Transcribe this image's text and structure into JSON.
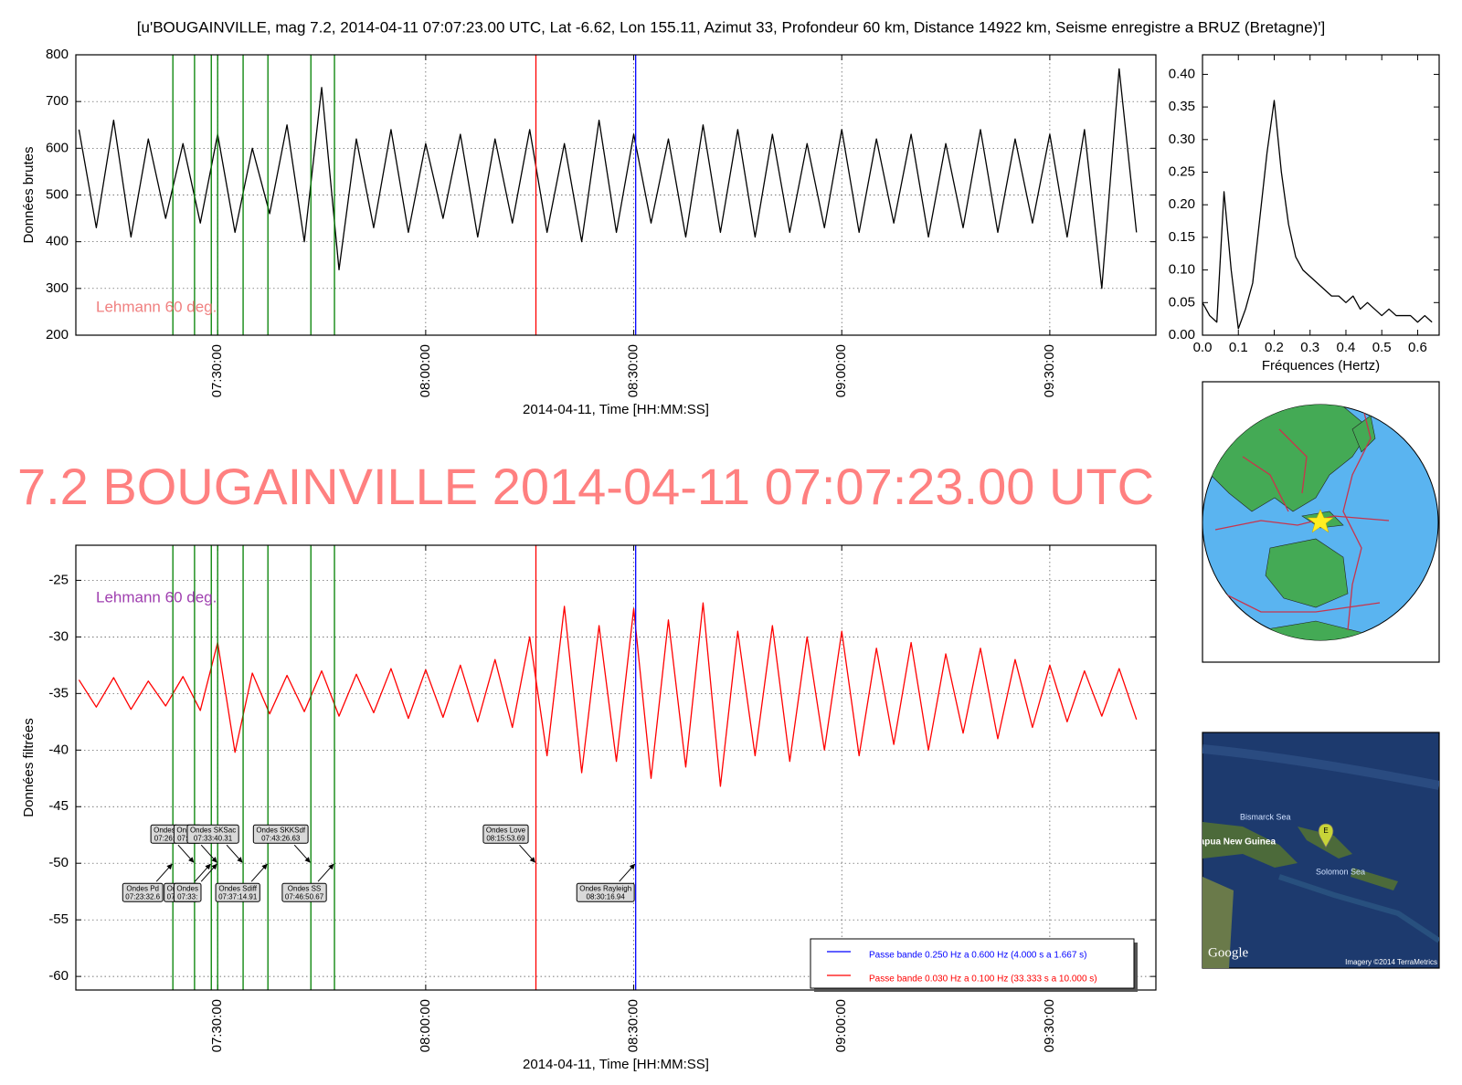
{
  "chart_data": [
    {
      "type": "line",
      "title": "[u'BOUGAINVILLE, mag 7.2, 2014-04-11 07:07:23.00 UTC, Lat -6.62, Lon 155.11, Azimut  33, Profondeur 60 km, Distance 14922 km, Seisme enregistre a BRUZ (Bretagne)']",
      "xlabel": "2014-04-11, Time [HH:MM:SS]",
      "ylabel": "Données brutes",
      "note": {
        "text": "Lehmann 60 deg.",
        "color": "#f08080"
      },
      "grid": true,
      "xlim": [
        "07:09:33",
        "09:45:18"
      ],
      "ylim": [
        200,
        800
      ],
      "xticks": [
        "07:30:00",
        "08:00:00",
        "08:30:00",
        "09:00:00",
        "09:30:00"
      ],
      "yticks": [
        200,
        300,
        400,
        500,
        600,
        700,
        800
      ],
      "vlines": [
        {
          "x": "07:23:32.6",
          "color": "#008000"
        },
        {
          "x": "07:26:40",
          "color": "#008000"
        },
        {
          "x": "07:29:05",
          "color": "#008000"
        },
        {
          "x": "07:30:00",
          "color": "#008000"
        },
        {
          "x": "07:33:40.31",
          "color": "#008000"
        },
        {
          "x": "07:37:14.91",
          "color": "#008000"
        },
        {
          "x": "07:43:26.63",
          "color": "#008000"
        },
        {
          "x": "07:46:50.67",
          "color": "#008000"
        },
        {
          "x": "08:15:53.69",
          "color": "#ff0000"
        },
        {
          "x": "08:30:16.94",
          "color": "#0000ff"
        }
      ],
      "x": [
        "07:10:00",
        "07:12:30",
        "07:15:00",
        "07:17:30",
        "07:20:00",
        "07:22:30",
        "07:25:00",
        "07:27:30",
        "07:30:00",
        "07:32:30",
        "07:35:00",
        "07:37:30",
        "07:40:00",
        "07:42:30",
        "07:45:00",
        "07:47:30",
        "07:50:00",
        "07:52:30",
        "07:55:00",
        "07:57:30",
        "08:00:00",
        "08:02:30",
        "08:05:00",
        "08:07:30",
        "08:10:00",
        "08:12:30",
        "08:15:00",
        "08:17:30",
        "08:20:00",
        "08:22:30",
        "08:25:00",
        "08:27:30",
        "08:30:00",
        "08:32:30",
        "08:35:00",
        "08:37:30",
        "08:40:00",
        "08:42:30",
        "08:45:00",
        "08:47:30",
        "08:50:00",
        "08:52:30",
        "08:55:00",
        "08:57:30",
        "09:00:00",
        "09:02:30",
        "09:05:00",
        "09:07:30",
        "09:10:00",
        "09:12:30",
        "09:15:00",
        "09:17:30",
        "09:20:00",
        "09:22:30",
        "09:25:00",
        "09:27:30",
        "09:30:00",
        "09:32:30",
        "09:35:00",
        "09:37:30",
        "09:40:00",
        "09:42:30"
      ],
      "series": [
        {
          "color": "#000000",
          "values": [
            640,
            430,
            660,
            410,
            620,
            450,
            610,
            440,
            630,
            420,
            600,
            460,
            650,
            400,
            730,
            340,
            620,
            430,
            640,
            420,
            610,
            450,
            630,
            410,
            620,
            440,
            640,
            420,
            610,
            400,
            660,
            420,
            630,
            440,
            620,
            410,
            650,
            420,
            640,
            410,
            630,
            420,
            610,
            430,
            640,
            420,
            620,
            440,
            630,
            410,
            610,
            430,
            640,
            420,
            620,
            440,
            630,
            410,
            640,
            300,
            770,
            420
          ]
        }
      ]
    },
    {
      "type": "line",
      "xlabel": "Fréquences (Hertz)",
      "grid": false,
      "xlim": [
        0,
        0.66
      ],
      "ylim": [
        0,
        0.43
      ],
      "xticks": [
        {
          "value": 0,
          "label": "0.0"
        },
        {
          "value": 0.1,
          "label": "0.1"
        },
        {
          "value": 0.2,
          "label": "0.2"
        },
        {
          "value": 0.3,
          "label": "0.3"
        },
        {
          "value": 0.4,
          "label": "0.4"
        },
        {
          "value": 0.5,
          "label": "0.5"
        },
        {
          "value": 0.6,
          "label": "0.6"
        }
      ],
      "yticks": [
        {
          "value": 0,
          "label": "0.00"
        },
        {
          "value": 0.05,
          "label": "0.05"
        },
        {
          "value": 0.1,
          "label": "0.10"
        },
        {
          "value": 0.15,
          "label": "0.15"
        },
        {
          "value": 0.2,
          "label": "0.20"
        },
        {
          "value": 0.25,
          "label": "0.25"
        },
        {
          "value": 0.3,
          "label": "0.30"
        },
        {
          "value": 0.35,
          "label": "0.35"
        },
        {
          "value": 0.4,
          "label": "0.40"
        }
      ],
      "x": [
        0,
        0.02,
        0.04,
        0.06,
        0.08,
        0.1,
        0.12,
        0.14,
        0.16,
        0.18,
        0.2,
        0.22,
        0.24,
        0.26,
        0.28,
        0.3,
        0.32,
        0.34,
        0.36,
        0.38,
        0.4,
        0.42,
        0.44,
        0.46,
        0.48,
        0.5,
        0.52,
        0.54,
        0.56,
        0.58,
        0.6,
        0.62,
        0.64
      ],
      "series": [
        {
          "color": "#000000",
          "values": [
            0.05,
            0.03,
            0.02,
            0.22,
            0.1,
            0.01,
            0.04,
            0.08,
            0.18,
            0.28,
            0.36,
            0.25,
            0.17,
            0.12,
            0.1,
            0.09,
            0.08,
            0.07,
            0.06,
            0.06,
            0.05,
            0.06,
            0.04,
            0.05,
            0.04,
            0.03,
            0.04,
            0.03,
            0.03,
            0.03,
            0.02,
            0.03,
            0.02
          ]
        }
      ]
    },
    {
      "type": "line",
      "title": "7.2 BOUGAINVILLE 2014-04-11 07:07:23.00 UTC",
      "title_color": "#ff8080",
      "xlabel": "2014-04-11, Time [HH:MM:SS]",
      "ylabel": "Données filtrées",
      "note": {
        "text": "Lehmann 60 deg.",
        "color": "#a040b0"
      },
      "grid": true,
      "legend_position": "lower right",
      "xlim": [
        "07:09:33",
        "09:45:18"
      ],
      "ylim": [
        -61.2,
        -21.9
      ],
      "xticks": [
        "07:30:00",
        "08:00:00",
        "08:30:00",
        "09:00:00",
        "09:30:00"
      ],
      "yticks": [
        -60,
        -55,
        -50,
        -45,
        -40,
        -35,
        -30,
        -25
      ],
      "vlines": [
        {
          "x": "07:23:32.6",
          "color": "#008000"
        },
        {
          "x": "07:26:40",
          "color": "#008000"
        },
        {
          "x": "07:29:05",
          "color": "#008000"
        },
        {
          "x": "07:30:00",
          "color": "#008000"
        },
        {
          "x": "07:33:40.31",
          "color": "#008000"
        },
        {
          "x": "07:37:14.91",
          "color": "#008000"
        },
        {
          "x": "07:43:26.63",
          "color": "#008000"
        },
        {
          "x": "07:46:50.67",
          "color": "#008000"
        },
        {
          "x": "08:15:53.69",
          "color": "#ff0000"
        },
        {
          "x": "08:30:16.94",
          "color": "#0000ff"
        }
      ],
      "annotations": [
        {
          "lines": [
            "Ondes",
            "07:26:"
          ],
          "x": "07:26:40",
          "y": -50,
          "side": "above"
        },
        {
          "lines": [
            "Ondes",
            "07:30:"
          ],
          "x": "07:30:00",
          "y": -50,
          "side": "above"
        },
        {
          "lines": [
            "Ondes SKSac",
            "07:33:40.31"
          ],
          "x": "07:33:40.31",
          "y": -50,
          "side": "above"
        },
        {
          "lines": [
            "Ondes SKKSdf",
            "07:43:26.63"
          ],
          "x": "07:43:26.63",
          "y": -50,
          "side": "above"
        },
        {
          "lines": [
            "Ondes Love",
            "08:15:53.69"
          ],
          "x": "08:15:53.69",
          "y": -50,
          "side": "above"
        },
        {
          "lines": [
            "Ondes Pd",
            "07:23:32.6"
          ],
          "x": "07:23:32.6",
          "y": -50,
          "side": "below"
        },
        {
          "lines": [
            "Ondes P",
            "07:29:05"
          ],
          "x": "07:29:05",
          "y": -50,
          "side": "below"
        },
        {
          "lines": [
            "Ondes",
            "07:33:"
          ],
          "x": "07:30:00",
          "y": -50,
          "side": "below"
        },
        {
          "lines": [
            "Ondes Sdiff",
            "07:37:14.91"
          ],
          "x": "07:37:14.91",
          "y": -50,
          "side": "below"
        },
        {
          "lines": [
            "Ondes SS",
            "07:46:50.67"
          ],
          "x": "07:46:50.67",
          "y": -50,
          "side": "below"
        },
        {
          "lines": [
            "Ondes Rayleigh",
            "08:30:16.94"
          ],
          "x": "08:30:16.94",
          "y": -50,
          "side": "below"
        }
      ],
      "legend": [
        {
          "name": "Passe bande 0.250 Hz a 0.600 Hz (4.000 s a 1.667 s)",
          "color": "#0000ff"
        },
        {
          "name": "Passe bande 0.030 Hz a 0.100 Hz (33.333 s a 10.000 s)",
          "color": "#ff0000"
        }
      ],
      "x": [
        "07:10:00",
        "07:12:30",
        "07:15:00",
        "07:17:30",
        "07:20:00",
        "07:22:30",
        "07:25:00",
        "07:27:30",
        "07:30:00",
        "07:32:30",
        "07:35:00",
        "07:37:30",
        "07:40:00",
        "07:42:30",
        "07:45:00",
        "07:47:30",
        "07:50:00",
        "07:52:30",
        "07:55:00",
        "07:57:30",
        "08:00:00",
        "08:02:30",
        "08:05:00",
        "08:07:30",
        "08:10:00",
        "08:12:30",
        "08:15:00",
        "08:17:30",
        "08:20:00",
        "08:22:30",
        "08:25:00",
        "08:27:30",
        "08:30:00",
        "08:32:30",
        "08:35:00",
        "08:37:30",
        "08:40:00",
        "08:42:30",
        "08:45:00",
        "08:47:30",
        "08:50:00",
        "08:52:30",
        "08:55:00",
        "08:57:30",
        "09:00:00",
        "09:02:30",
        "09:05:00",
        "09:07:30",
        "09:10:00",
        "09:12:30",
        "09:15:00",
        "09:17:30",
        "09:20:00",
        "09:22:30",
        "09:25:00",
        "09:27:30",
        "09:30:00",
        "09:32:30",
        "09:35:00",
        "09:37:30",
        "09:40:00",
        "09:42:30"
      ],
      "series": [
        {
          "color": "#ff0000",
          "values": [
            -33.8,
            -36.2,
            -33.6,
            -36.4,
            -33.9,
            -36.1,
            -33.5,
            -36.5,
            -30.5,
            -40.2,
            -33.2,
            -36.8,
            -33.4,
            -36.6,
            -33.0,
            -37.0,
            -33.3,
            -36.7,
            -32.8,
            -37.2,
            -32.9,
            -37.1,
            -32.5,
            -37.5,
            -32.0,
            -38.0,
            -30.0,
            -40.5,
            -27.3,
            -42.0,
            -29.0,
            -41.0,
            -27.5,
            -42.5,
            -28.5,
            -41.5,
            -27.0,
            -43.2,
            -29.5,
            -40.5,
            -29.0,
            -41.0,
            -30.0,
            -40.0,
            -29.5,
            -40.5,
            -31.0,
            -39.5,
            -30.5,
            -40.0,
            -31.5,
            -38.5,
            -31.0,
            -39.0,
            -32.0,
            -38.0,
            -32.5,
            -37.5,
            -33.0,
            -37.0,
            -32.8,
            -37.3
          ]
        }
      ]
    }
  ],
  "map_labels": {
    "sea_1": "Bismarck Sea",
    "country": "Papua New Guinea",
    "sea_2": "Solomon Sea",
    "marker": "E",
    "brand": "Google",
    "credit": "Imagery ©2014 TerraMetrics"
  }
}
